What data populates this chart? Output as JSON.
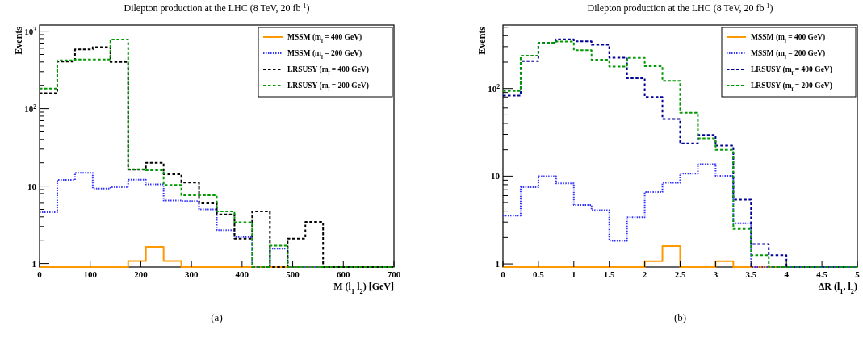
{
  "chart_data": [
    {
      "type": "histogram",
      "title": "Dilepton production at the LHC (8 TeV, 20 fb$^{-1}$)",
      "xlabel": "M (l$_{1}$ l$_{2}$) [GeV]",
      "ylabel": "Events",
      "annotations": [
        "(a)"
      ],
      "log": true,
      "legend": "top right",
      "bins": [
        0,
        35,
        70,
        105,
        140,
        175,
        210,
        245,
        280,
        315,
        350,
        385,
        420,
        455,
        490,
        525,
        560,
        595,
        630,
        665,
        700
      ],
      "xlim": [
        0,
        700
      ],
      "xticks": [
        0,
        100,
        200,
        300,
        400,
        500,
        600,
        700
      ],
      "ylim": [
        0.9,
        1200
      ],
      "yticks": [
        {
          "value": 1,
          "label": "1"
        },
        {
          "value": 2,
          "label": null
        },
        {
          "value": 3,
          "label": null
        },
        {
          "value": 4,
          "label": null
        },
        {
          "value": 5,
          "label": null
        },
        {
          "value": 6,
          "label": null
        },
        {
          "value": 7,
          "label": null
        },
        {
          "value": 8,
          "label": null
        },
        {
          "value": 9,
          "label": null
        },
        {
          "value": 10,
          "label": "10"
        },
        {
          "value": 20,
          "label": null
        },
        {
          "value": 30,
          "label": null
        },
        {
          "value": 40,
          "label": null
        },
        {
          "value": 50,
          "label": null
        },
        {
          "value": 60,
          "label": null
        },
        {
          "value": 70,
          "label": null
        },
        {
          "value": 80,
          "label": null
        },
        {
          "value": 90,
          "label": null
        },
        {
          "value": 100,
          "label": "10$^{2}$"
        },
        {
          "value": 200,
          "label": null
        },
        {
          "value": 300,
          "label": null
        },
        {
          "value": 400,
          "label": null
        },
        {
          "value": 500,
          "label": null
        },
        {
          "value": 600,
          "label": null
        },
        {
          "value": 700,
          "label": null
        },
        {
          "value": 800,
          "label": null
        },
        {
          "value": 900,
          "label": null
        },
        {
          "value": 1000,
          "label": "10$^{3}$"
        }
      ],
      "series": [
        {
          "name": "MSSM (m$_{l̃}$ = 400 GeV)",
          "color": "#ff9900",
          "line_style": "solid",
          "values": [
            null,
            null,
            null,
            null,
            null,
            1.08,
            1.64,
            1.08,
            null,
            null,
            null,
            null,
            null,
            null,
            null,
            null,
            null,
            null,
            null,
            null
          ]
        },
        {
          "name": "MSSM (m$_{l̃}$ = 200 GeV)",
          "color": "#3333ff",
          "line_style": "dotted",
          "values": [
            4.6,
            12,
            14.8,
            9.3,
            9.7,
            12.1,
            10.5,
            6.5,
            6.4,
            5.0,
            2.7,
            2.2,
            null,
            1.55,
            null,
            null,
            null,
            null,
            null,
            null
          ]
        },
        {
          "name": "LRSUSY (m$_{l̃}$ = 400 GeV)",
          "color": "#000000",
          "line_style": "dashed",
          "values": [
            158,
            405,
            580,
            620,
            400,
            16.3,
            20,
            14.2,
            11.1,
            6.0,
            4.3,
            2.1,
            4.7,
            null,
            2.1,
            3.45,
            null,
            null,
            null,
            null
          ]
        },
        {
          "name": "LRSUSY (m$_{l̃}$ = 200 GeV)",
          "color": "#009900",
          "line_style": "dashed",
          "values": [
            182,
            420,
            430,
            430,
            780,
            16.5,
            16,
            10.3,
            7.6,
            7.6,
            4.7,
            3.4,
            null,
            1.7,
            null,
            null,
            null,
            null,
            null,
            null
          ]
        }
      ]
    },
    {
      "type": "histogram",
      "title": "Dilepton production at the LHC (8 TeV, 20 fb$^{-1}$)",
      "xlabel": "ΔR (l$_{1}$, l$_{2}$)",
      "ylabel": "Events",
      "annotations": [
        "(b)"
      ],
      "log": true,
      "legend": "top right",
      "bins": [
        0,
        0.25,
        0.5,
        0.75,
        1,
        1.25,
        1.5,
        1.75,
        2,
        2.25,
        2.5,
        2.75,
        3,
        3.25,
        3.5,
        3.75,
        4,
        4.25,
        4.5,
        4.75,
        5
      ],
      "xlim": [
        0,
        5
      ],
      "xticks": [
        0,
        0.5,
        1,
        1.5,
        2,
        2.5,
        3,
        3.5,
        4,
        4.5,
        5
      ],
      "ylim": [
        0.92,
        530
      ],
      "yticks": [
        {
          "value": 1,
          "label": "1"
        },
        {
          "value": 2,
          "label": null
        },
        {
          "value": 3,
          "label": null
        },
        {
          "value": 4,
          "label": null
        },
        {
          "value": 5,
          "label": null
        },
        {
          "value": 6,
          "label": null
        },
        {
          "value": 7,
          "label": null
        },
        {
          "value": 8,
          "label": null
        },
        {
          "value": 9,
          "label": null
        },
        {
          "value": 10,
          "label": "10"
        },
        {
          "value": 20,
          "label": null
        },
        {
          "value": 30,
          "label": null
        },
        {
          "value": 40,
          "label": null
        },
        {
          "value": 50,
          "label": null
        },
        {
          "value": 60,
          "label": null
        },
        {
          "value": 70,
          "label": null
        },
        {
          "value": 80,
          "label": null
        },
        {
          "value": 90,
          "label": null
        },
        {
          "value": 100,
          "label": "10$^{2}$"
        },
        {
          "value": 200,
          "label": null
        },
        {
          "value": 300,
          "label": null
        },
        {
          "value": 400,
          "label": null
        },
        {
          "value": 500,
          "label": null
        }
      ],
      "series": [
        {
          "name": "MSSM (m$_{l̃}$ = 400 GeV)",
          "color": "#ff9900",
          "line_style": "solid",
          "values": [
            null,
            null,
            null,
            null,
            null,
            null,
            null,
            null,
            1.07,
            1.6,
            null,
            null,
            1.07,
            null,
            null,
            null,
            null,
            null,
            null,
            null
          ]
        },
        {
          "name": "MSSM (m$_{l̃}$ = 200 GeV)",
          "color": "#3333ff",
          "line_style": "dotted",
          "values": [
            3.55,
            7.5,
            10,
            8.3,
            4.7,
            4.1,
            1.83,
            3.4,
            6.6,
            8.4,
            10.7,
            13.7,
            10.1,
            2.9,
            null,
            null,
            null,
            null,
            null,
            null
          ]
        },
        {
          "name": "LRSUSY (m$_{l̃}$ = 400 GeV)",
          "color": "#000099",
          "line_style": "dashed",
          "values": [
            83,
            205,
            333,
            363,
            345,
            315,
            225,
            131,
            80,
            45,
            23.6,
            29.6,
            22.3,
            5.4,
            1.68,
            1.26,
            null,
            null,
            null,
            null
          ]
        },
        {
          "name": "LRSUSY (m$_{l̃}$ = 200 GeV)",
          "color": "#009900",
          "line_style": "dashed",
          "values": [
            94,
            237,
            333,
            343,
            273,
            213,
            178,
            224,
            180,
            122,
            53,
            27,
            20,
            2.5,
            1.26,
            null,
            null,
            null,
            null,
            null
          ]
        }
      ]
    }
  ]
}
